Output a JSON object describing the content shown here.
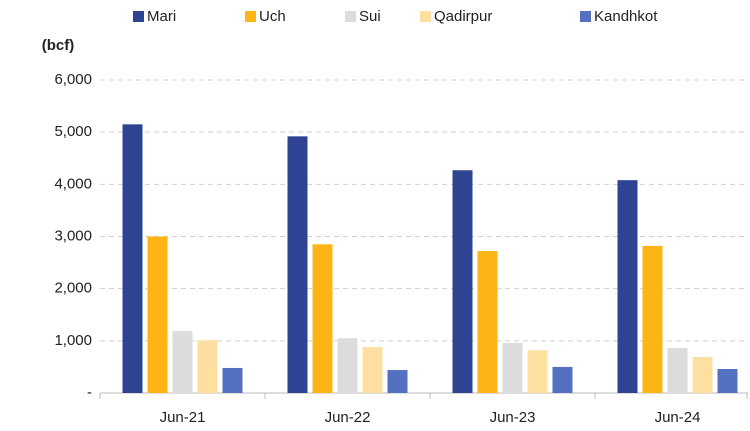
{
  "chart_data": {
    "type": "bar",
    "y_label": "(bcf)",
    "categories": [
      "Jun-21",
      "Jun-22",
      "Jun-23",
      "Jun-24"
    ],
    "series": [
      {
        "name": "Mari",
        "color": "#2e4493",
        "values": [
          5150,
          4920,
          4270,
          4080
        ]
      },
      {
        "name": "Uch",
        "color": "#fdb515",
        "values": [
          3000,
          2850,
          2720,
          2820
        ]
      },
      {
        "name": "Sui",
        "color": "#dcdcdc",
        "values": [
          1190,
          1050,
          960,
          860
        ]
      },
      {
        "name": "Qadirpur",
        "color": "#fde0a0",
        "values": [
          1010,
          880,
          820,
          690
        ]
      },
      {
        "name": "Kandhkot",
        "color": "#5470c0",
        "values": [
          480,
          440,
          500,
          460
        ]
      }
    ],
    "ylim": [
      0,
      6000
    ],
    "yticks": [
      {
        "value": 0,
        "label": "-"
      },
      {
        "value": 1000,
        "label": "1,000"
      },
      {
        "value": 2000,
        "label": "2,000"
      },
      {
        "value": 3000,
        "label": "3,000"
      },
      {
        "value": 4000,
        "label": "4,000"
      },
      {
        "value": 5000,
        "label": "5,000"
      },
      {
        "value": 6000,
        "label": "6,000"
      }
    ],
    "grid": true,
    "legend": "top"
  }
}
